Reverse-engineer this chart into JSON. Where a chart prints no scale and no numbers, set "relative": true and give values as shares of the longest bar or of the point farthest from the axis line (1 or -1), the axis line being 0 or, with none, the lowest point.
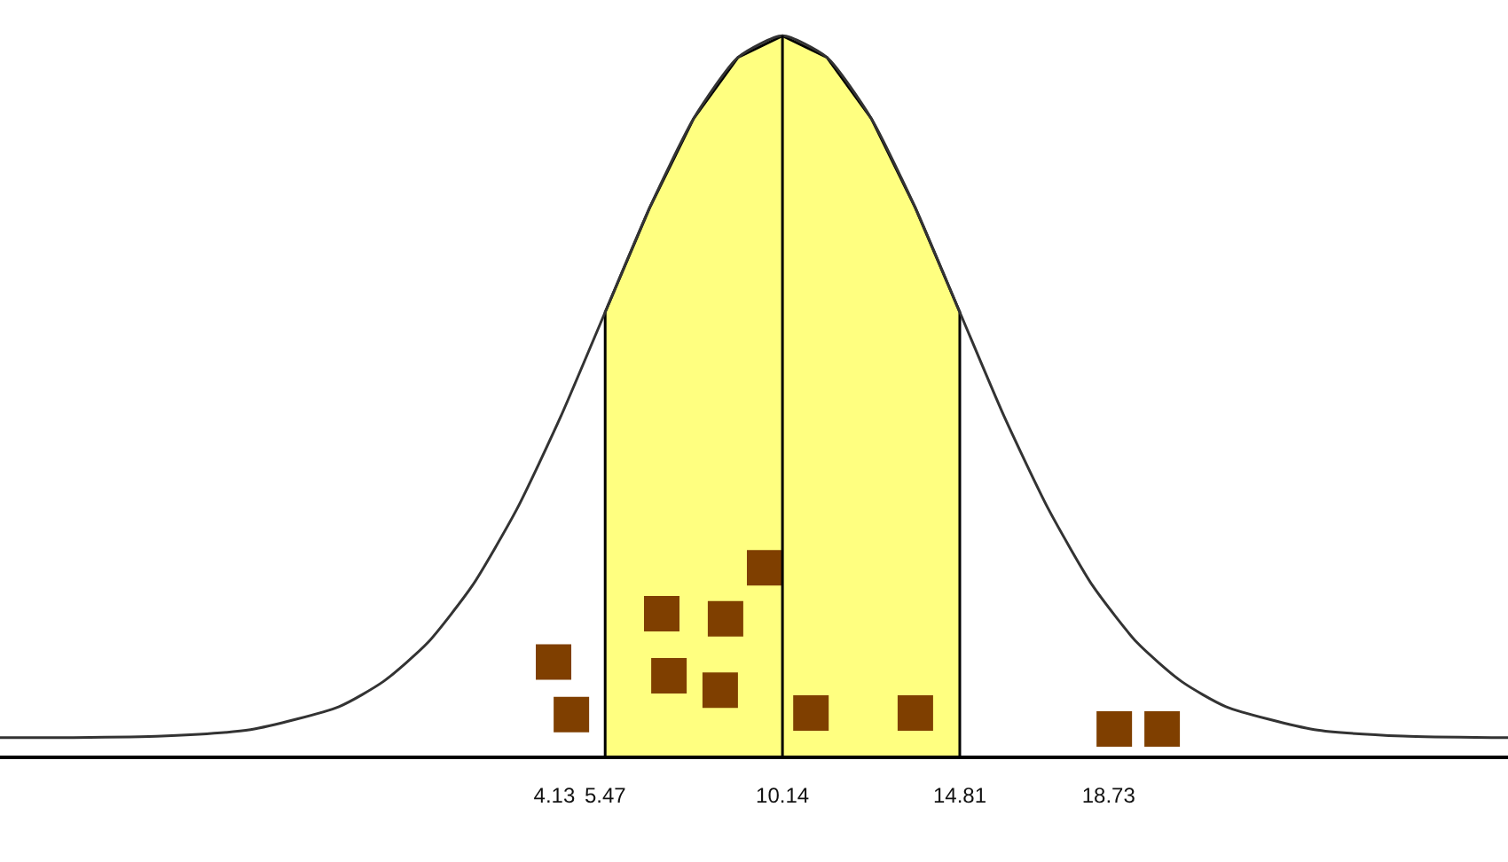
{
  "chart_data": {
    "type": "line",
    "relative": true,
    "xlim": [
      -10.47,
      29.25
    ],
    "xticks": [
      4.13,
      5.47,
      10.14,
      14.81,
      18.73
    ],
    "tick_labels": "x",
    "series": [
      {
        "color": "#333333",
        "marker": "none",
        "line_style": "solid",
        "x": [
          -10.47,
          -8.54,
          -6.21,
          -3.87,
          -1.54,
          -0.37,
          0.8,
          1.97,
          3.14,
          4.3,
          5.47,
          6.64,
          7.8,
          8.97,
          10.14,
          11.31,
          12.48,
          13.64,
          14.81,
          15.98,
          17.15,
          18.31,
          19.48,
          20.65,
          21.82,
          24.15,
          26.49,
          28.82,
          29.25
        ],
        "values": [
          0.025,
          0.025,
          0.027,
          0.036,
          0.068,
          0.103,
          0.157,
          0.236,
          0.342,
          0.471,
          0.616,
          0.761,
          0.885,
          0.97,
          1.0,
          0.97,
          0.885,
          0.761,
          0.616,
          0.471,
          0.342,
          0.236,
          0.157,
          0.103,
          0.068,
          0.036,
          0.027,
          0.025,
          0.025
        ]
      },
      {
        "type": "scatter",
        "color": "#7f3f00",
        "marker": "square",
        "x": [
          4.11,
          4.58,
          6.96,
          7.15,
          8.64,
          8.5,
          9.67,
          10.89,
          13.64,
          18.88,
          20.14
        ],
        "values": [
          0.13,
          0.057,
          0.197,
          0.111,
          0.19,
          0.091,
          0.261,
          0.059,
          0.059,
          0.037,
          0.037
        ]
      }
    ],
    "bands": [
      {
        "axis": "x",
        "from": 5.47,
        "to": 14.81,
        "color": "#ffff80"
      }
    ],
    "ref_lines": [
      {
        "axis": "x",
        "value": 10.14,
        "color": "#000000",
        "line_style": "solid"
      }
    ]
  }
}
